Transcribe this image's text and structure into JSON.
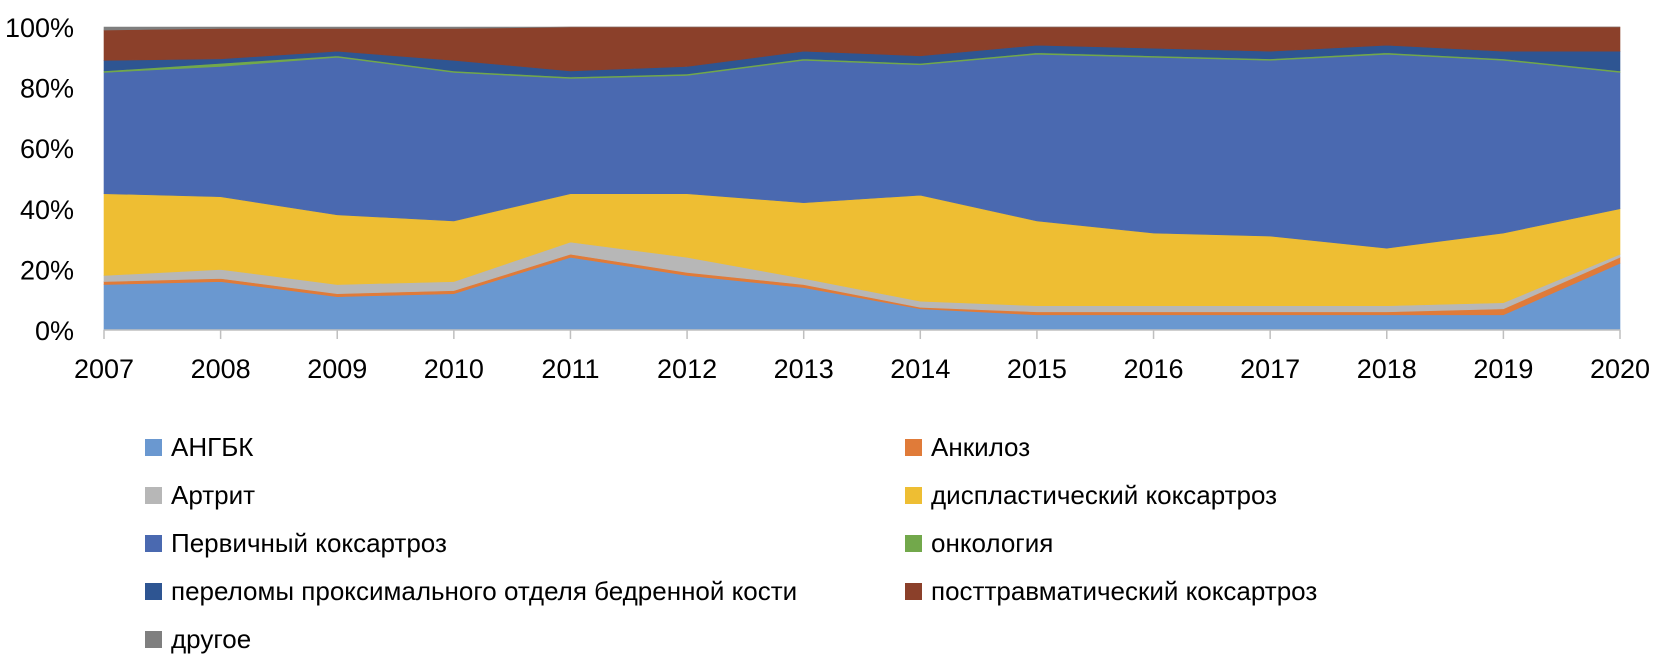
{
  "chart_data": {
    "type": "area",
    "stacked": true,
    "percent": true,
    "x": [
      "2007",
      "2008",
      "2009",
      "2010",
      "2011",
      "2012",
      "2013",
      "2014",
      "2015",
      "2016",
      "2017",
      "2018",
      "2019",
      "2020"
    ],
    "y_ticks": [
      "0%",
      "20%",
      "40%",
      "60%",
      "80%",
      "100%"
    ],
    "ylim": [
      0,
      100
    ],
    "grid": false,
    "legend_position": "bottom",
    "series": [
      {
        "name": "АНГБК",
        "color": "#6A98D0",
        "values": [
          15,
          16,
          11,
          12,
          24,
          18,
          14,
          7,
          5,
          5,
          5,
          5,
          5,
          22
        ]
      },
      {
        "name": "Анкилоз",
        "color": "#E07B39",
        "values": [
          1,
          1,
          1,
          1,
          1,
          1,
          1,
          0.5,
          1,
          1,
          1,
          1,
          2,
          2
        ]
      },
      {
        "name": "Артрит",
        "color": "#B7B7B7",
        "values": [
          2,
          3,
          3,
          3,
          4,
          5,
          2,
          2,
          2,
          2,
          2,
          2,
          2,
          1
        ]
      },
      {
        "name": "диспластический коксартроз",
        "color": "#EEBE33",
        "values": [
          27,
          24,
          23,
          20,
          16,
          21,
          25,
          35,
          28,
          24,
          23,
          19,
          23,
          15
        ]
      },
      {
        "name": "Первичный коксартроз",
        "color": "#4A69B0",
        "values": [
          40,
          43,
          52,
          49,
          38,
          39,
          47,
          43,
          55,
          58,
          58,
          64,
          57,
          45
        ]
      },
      {
        "name": "онкология",
        "color": "#72A84B",
        "values": [
          0.5,
          1,
          0.5,
          0.5,
          0.5,
          0.5,
          0.5,
          0.5,
          0.5,
          0.5,
          0.5,
          0.5,
          0.5,
          0.5
        ]
      },
      {
        "name": "переломы проксимального отделя бедренной кости",
        "color": "#2E5592",
        "values": [
          3.5,
          1.5,
          1.5,
          3.5,
          2,
          2.5,
          2.5,
          2.5,
          2.5,
          2.5,
          2.5,
          2.5,
          2.5,
          6.5
        ]
      },
      {
        "name": "посттравматический коксартроз",
        "color": "#8B402A",
        "values": [
          10,
          10,
          7.5,
          10.5,
          14.5,
          13,
          8,
          9.5,
          6,
          7,
          8,
          6,
          8,
          8
        ]
      },
      {
        "name": "другое",
        "color": "#7F7F7F",
        "values": [
          1,
          0.5,
          0.5,
          0.5,
          0,
          0,
          0,
          0,
          0,
          0,
          0,
          0,
          0,
          0
        ]
      }
    ]
  }
}
